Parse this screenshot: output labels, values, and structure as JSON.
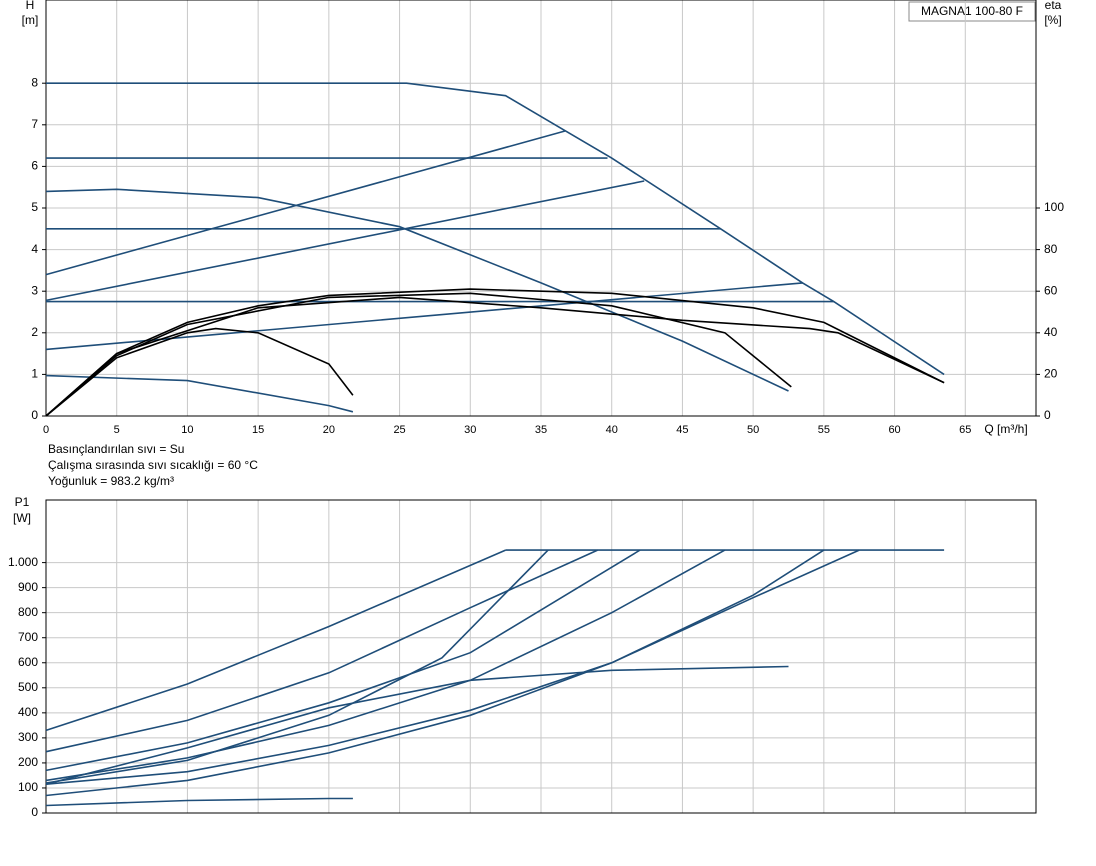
{
  "chart_data": [
    {
      "type": "line",
      "model": "MAGNA1 100-80 F",
      "y_label": [
        "H",
        "[m]"
      ],
      "y2_label": [
        "eta",
        "[%]"
      ],
      "x_label": "Q [m³/h]",
      "notes": [
        "Basınçlandırılan sıvı = Su",
        "Çalışma sırasında sıvı sıcaklığı = 60 °C",
        "Yoğunluk = 983.2 kg/m³"
      ],
      "xlim": [
        0,
        70
      ],
      "xticks": [
        0,
        5,
        10,
        15,
        20,
        25,
        30,
        35,
        40,
        45,
        50,
        55,
        60,
        65
      ],
      "ylim": [
        0,
        10
      ],
      "yticks": [
        0,
        1,
        2,
        3,
        4,
        5,
        6,
        7,
        8
      ],
      "y2lim": [
        0,
        200
      ],
      "y2ticks": [
        0,
        20,
        40,
        60,
        80,
        100
      ],
      "grid": true,
      "series": [
        {
          "color": "#1f4e79",
          "x": [
            0,
            25.5,
            32.5,
            40,
            47.7,
            53.5,
            55.7,
            63.5
          ],
          "values": [
            8,
            8,
            7.7,
            6.2,
            4.5,
            3.2,
            2.75,
            1.0
          ]
        },
        {
          "color": "#1f4e79",
          "x": [
            0,
            39.7
          ],
          "values": [
            6.2,
            6.2
          ]
        },
        {
          "color": "#1f4e79",
          "x": [
            0,
            47.7
          ],
          "values": [
            4.5,
            4.5
          ]
        },
        {
          "color": "#1f4e79",
          "x": [
            0,
            55.7
          ],
          "values": [
            2.75,
            2.75
          ]
        },
        {
          "color": "#1f4e79",
          "x": [
            0,
            36.7
          ],
          "values": [
            3.4,
            6.85
          ]
        },
        {
          "color": "#1f4e79",
          "x": [
            0,
            42.3
          ],
          "values": [
            2.78,
            5.65
          ]
        },
        {
          "color": "#1f4e79",
          "x": [
            0,
            53.5
          ],
          "values": [
            1.6,
            3.2
          ]
        },
        {
          "color": "#1f4e79",
          "x": [
            0,
            5,
            15,
            25,
            35,
            45,
            52.5
          ],
          "values": [
            5.4,
            5.45,
            5.25,
            4.55,
            3.2,
            1.8,
            0.6
          ]
        },
        {
          "color": "#1f4e79",
          "x": [
            0,
            10,
            20,
            21.7
          ],
          "values": [
            0.97,
            0.85,
            0.25,
            0.1
          ]
        },
        {
          "color": "#000000",
          "axis": "y2",
          "x": [
            0,
            5,
            10,
            15,
            20,
            30,
            40,
            50,
            55,
            63.5
          ],
          "values": [
            0,
            30,
            45,
            53,
            58,
            61,
            59,
            52,
            45,
            16
          ]
        },
        {
          "color": "#000000",
          "axis": "y2",
          "x": [
            0,
            5,
            10,
            20,
            30,
            40,
            48,
            52.7
          ],
          "values": [
            0,
            29,
            44,
            57,
            59,
            53,
            40,
            14
          ]
        },
        {
          "color": "#000000",
          "axis": "y2",
          "x": [
            0,
            5,
            10,
            12,
            15,
            20,
            21.7
          ],
          "values": [
            0,
            28,
            40,
            42,
            40,
            25,
            10
          ]
        },
        {
          "color": "#000000",
          "axis": "y2",
          "x": [
            0,
            5,
            15,
            25,
            35,
            45,
            54,
            56,
            63.5
          ],
          "values": [
            0,
            30,
            52,
            57,
            52,
            46,
            42,
            40,
            16
          ]
        }
      ]
    },
    {
      "type": "line",
      "y_label": [
        "P1",
        "[W]"
      ],
      "xlim": [
        0,
        70
      ],
      "ylim": [
        0,
        1250
      ],
      "yticks": [
        0,
        100,
        200,
        300,
        400,
        500,
        600,
        700,
        800,
        900,
        {
          "value": 1000,
          "label": "1.000"
        }
      ],
      "grid": true,
      "series": [
        {
          "color": "#1f4e79",
          "x": [
            32.5,
            63.5
          ],
          "values": [
            1050,
            1050
          ]
        },
        {
          "color": "#1f4e79",
          "x": [
            0,
            10,
            20,
            32.5
          ],
          "values": [
            330,
            515,
            745,
            1050
          ]
        },
        {
          "color": "#1f4e79",
          "x": [
            0,
            10,
            20,
            30,
            39
          ],
          "values": [
            245,
            370,
            560,
            820,
            1050
          ]
        },
        {
          "color": "#1f4e79",
          "x": [
            0,
            10,
            20,
            28,
            35.5
          ],
          "values": [
            120,
            210,
            390,
            620,
            1050
          ]
        },
        {
          "color": "#1f4e79",
          "x": [
            0,
            10,
            20,
            30,
            42
          ],
          "values": [
            170,
            280,
            440,
            640,
            1050
          ]
        },
        {
          "color": "#1f4e79",
          "x": [
            0,
            10,
            20,
            30,
            40,
            48
          ],
          "values": [
            130,
            220,
            350,
            530,
            800,
            1050
          ]
        },
        {
          "color": "#1f4e79",
          "x": [
            0,
            10,
            20,
            30,
            40,
            50,
            55
          ],
          "values": [
            70,
            130,
            240,
            390,
            600,
            870,
            1050
          ]
        },
        {
          "color": "#1f4e79",
          "x": [
            0,
            10,
            20,
            30,
            40,
            50,
            57.5
          ],
          "values": [
            115,
            165,
            270,
            410,
            600,
            860,
            1050
          ]
        },
        {
          "color": "#1f4e79",
          "x": [
            0,
            10,
            20,
            30,
            40,
            52.5
          ],
          "values": [
            115,
            260,
            420,
            530,
            570,
            585
          ]
        },
        {
          "color": "#1f4e79",
          "x": [
            0,
            10,
            20,
            21.7
          ],
          "values": [
            30,
            50,
            58,
            58
          ]
        }
      ]
    }
  ]
}
